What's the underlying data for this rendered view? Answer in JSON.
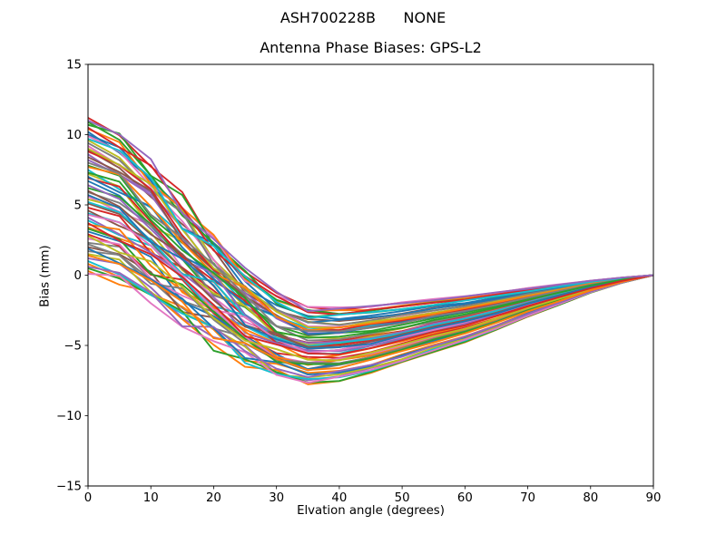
{
  "figure": {
    "background": "#ffffff",
    "suptitle": "ASH700228B      NONE"
  },
  "chart_data": {
    "type": "line",
    "title": "Antenna Phase Biases: GPS-L2",
    "xlabel": "Elvation angle (degrees)",
    "ylabel": "Bias (mm)",
    "xlim": [
      0,
      90
    ],
    "ylim": [
      -15,
      15
    ],
    "x_ticks": [
      0,
      10,
      20,
      30,
      40,
      50,
      60,
      70,
      80,
      90
    ],
    "y_ticks": [
      15,
      10,
      5,
      0,
      -5,
      -10,
      -15
    ],
    "grid": false,
    "legend": "none",
    "axis_color": "#000000",
    "line_width": 1.9,
    "x": [
      0,
      5,
      10,
      15,
      20,
      25,
      30,
      35,
      40,
      45,
      50,
      55,
      60,
      65,
      70,
      75,
      80,
      85,
      90
    ],
    "descent_weights": [
      1,
      0.92,
      0.75,
      0.56,
      0.38,
      0.21,
      0.08,
      0.01,
      0,
      0,
      0,
      0,
      0,
      0,
      0,
      0,
      0,
      0,
      0
    ],
    "rise_weights": [
      1,
      1,
      1,
      1,
      1,
      1,
      1,
      1,
      0.96,
      0.89,
      0.8,
      0.7,
      0.61,
      0.5,
      0.38,
      0.27,
      0.16,
      0.07,
      0
    ],
    "jitter_bump": [
      0,
      0.6,
      1,
      1,
      1,
      0.85,
      0.5,
      0.25,
      0.15,
      0.1,
      0.08,
      0.06,
      0.05,
      0.04,
      0.03,
      0.02,
      0.01,
      0,
      0
    ],
    "jitter_amp": 0.7,
    "color_cycle": [
      "#1f77b4",
      "#ff7f0e",
      "#2ca02c",
      "#d62728",
      "#9467bd",
      "#8c564b",
      "#e377c2",
      "#7f7f7f",
      "#bcbd22",
      "#17becf"
    ],
    "series_format": "[bias_at_0deg_mm, min_bias_mm]; curve = min*rise_weight + (start-min)*descent_weight, all curves end at 0 mm at 90deg",
    "series": [
      [
        10.2,
        -3.2
      ],
      [
        3.4,
        -5.9
      ],
      [
        7.8,
        -4.4
      ],
      [
        11.2,
        -2.5
      ],
      [
        1.2,
        -7.5
      ],
      [
        8.9,
        -3.4
      ],
      [
        5.6,
        -5.5
      ],
      [
        2.3,
        -6.3
      ],
      [
        9.6,
        -3.6
      ],
      [
        4.4,
        -5.5
      ],
      [
        6.7,
        -5.0
      ],
      [
        0.3,
        -7.8
      ],
      [
        10.7,
        -3.0
      ],
      [
        2.9,
        -6.1
      ],
      [
        8.2,
        -4.2
      ],
      [
        5.1,
        -5.1
      ],
      [
        9.2,
        -3.8
      ],
      [
        1.7,
        -6.7
      ],
      [
        7.2,
        -4.7
      ],
      [
        3.9,
        -5.7
      ],
      [
        10.0,
        -3.4
      ],
      [
        0.8,
        -7.1
      ],
      [
        6.2,
        -5.1
      ],
      [
        4.8,
        -5.2
      ],
      [
        8.6,
        -4.1
      ],
      [
        2.0,
        -6.6
      ],
      [
        9.9,
        -2.45
      ],
      [
        5.9,
        -4.7
      ],
      [
        1.5,
        -7.4
      ],
      [
        7.5,
        -4.0
      ],
      [
        3.1,
        -6.6
      ],
      [
        10.4,
        -2.7
      ],
      [
        0.5,
        -7.75
      ],
      [
        6.9,
        -4.9
      ],
      [
        4.1,
        -5.6
      ],
      [
        8.4,
        -4.2
      ],
      [
        2.6,
        -6.3
      ],
      [
        9.4,
        -3.6
      ],
      [
        5.4,
        -5.0
      ],
      [
        1.0,
        -7.6
      ],
      [
        7.0,
        -4.2
      ],
      [
        3.6,
        -6.4
      ],
      [
        10.9,
        -2.8
      ],
      [
        8.8,
        -4.0
      ],
      [
        6.4,
        -5.0
      ],
      [
        4.6,
        -5.3
      ],
      [
        0.1,
        -7.6
      ],
      [
        2.2,
        -6.5
      ],
      [
        9.0,
        -3.8
      ],
      [
        5.2,
        -5.1
      ],
      [
        1.9,
        -7.2
      ],
      [
        7.7,
        -3.9
      ],
      [
        3.3,
        -6.6
      ],
      [
        10.5,
        -2.8
      ],
      [
        0.6,
        -7.2
      ],
      [
        6.0,
        -5.3
      ],
      [
        4.3,
        -5.5
      ],
      [
        8.0,
        -4.2
      ],
      [
        2.8,
        -6.2
      ],
      [
        9.7,
        -3.0
      ],
      [
        5.7,
        -5.4
      ],
      [
        1.4,
        -6.8
      ],
      [
        7.3,
        -4.6
      ],
      [
        3.7,
        -5.8
      ],
      [
        11.0,
        -2.5
      ]
    ]
  }
}
